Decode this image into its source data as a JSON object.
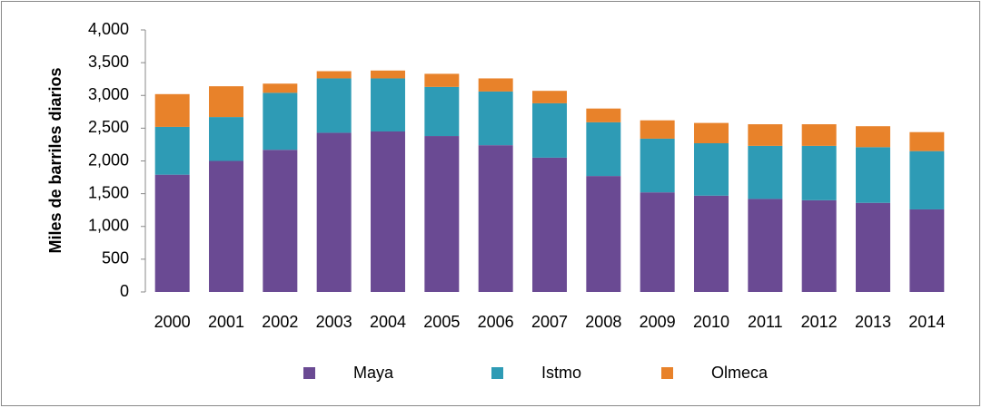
{
  "chart_data": {
    "type": "stacked-bar",
    "y_label": "Miles de barriles diarios",
    "categories": [
      "2000",
      "2001",
      "2002",
      "2003",
      "2004",
      "2005",
      "2006",
      "2007",
      "2008",
      "2009",
      "2010",
      "2011",
      "2012",
      "2013",
      "2014"
    ],
    "series": [
      {
        "name": "Maya",
        "color": "#6a4a93",
        "values": [
          1790,
          2000,
          2170,
          2430,
          2450,
          2380,
          2240,
          2050,
          1770,
          1520,
          1470,
          1420,
          1400,
          1360,
          1260
        ]
      },
      {
        "name": "Istmo",
        "color": "#2e9bb5",
        "values": [
          730,
          670,
          870,
          830,
          810,
          750,
          820,
          830,
          820,
          820,
          800,
          810,
          830,
          850,
          890
        ]
      },
      {
        "name": "Olmeca",
        "color": "#e8822a",
        "values": [
          500,
          470,
          140,
          110,
          120,
          200,
          200,
          190,
          210,
          280,
          310,
          330,
          330,
          320,
          290
        ]
      }
    ],
    "ylim": [
      0,
      4000
    ],
    "yticks": [
      0,
      500,
      {
        "value": 1000,
        "label": "1,000"
      },
      {
        "value": 1500,
        "label": "1,500"
      },
      {
        "value": 2000,
        "label": "2,000"
      },
      {
        "value": 2500,
        "label": "2,500"
      },
      {
        "value": 3000,
        "label": "3,000"
      },
      {
        "value": 3500,
        "label": "3,500"
      },
      {
        "value": 4000,
        "label": "4,000"
      }
    ],
    "legend": "bottom"
  }
}
